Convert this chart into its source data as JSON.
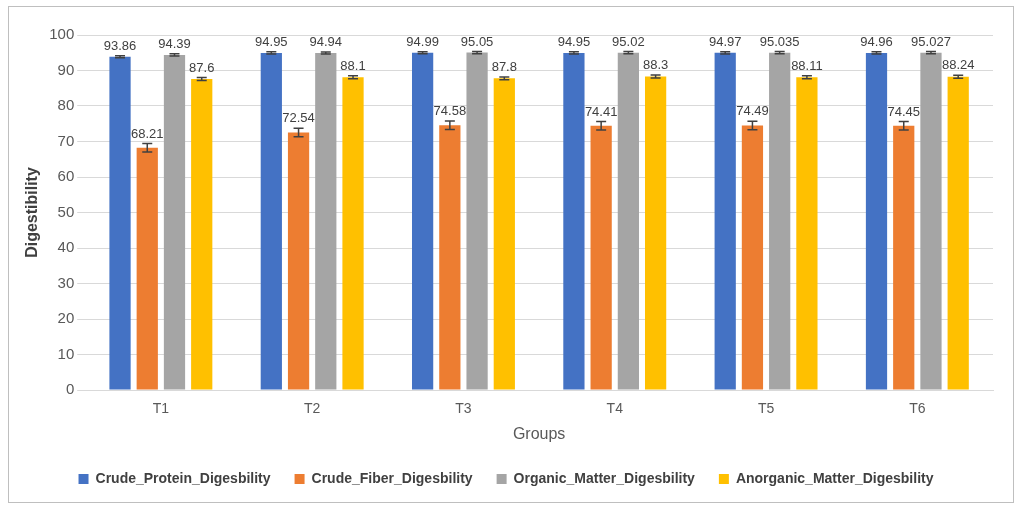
{
  "chart_data": {
    "type": "bar",
    "xlabel": "Groups",
    "ylabel": "Digestibility",
    "categories": [
      "T1",
      "T2",
      "T3",
      "T4",
      "T5",
      "T6"
    ],
    "series": [
      {
        "name": "Crude_Protein_Digesbility",
        "color": "#4472c4",
        "values": [
          93.86,
          94.95,
          94.99,
          94.95,
          94.97,
          94.96
        ],
        "errors": [
          0.3,
          0.3,
          0.3,
          0.3,
          0.3,
          0.3
        ]
      },
      {
        "name": "Crude_Fiber_Digesbility",
        "color": "#ed7d31",
        "values": [
          68.21,
          72.54,
          74.58,
          74.41,
          74.49,
          74.45
        ],
        "errors": [
          1.2,
          1.2,
          1.2,
          1.2,
          1.2,
          1.2
        ]
      },
      {
        "name": "Organic_Matter_Digesbility",
        "color": "#a5a5a5",
        "values": [
          94.39,
          94.94,
          95.05,
          95.02,
          95.035,
          95.027
        ],
        "errors": [
          0.3,
          0.3,
          0.3,
          0.3,
          0.3,
          0.3
        ]
      },
      {
        "name": "Anorganic_Matter_Digesbility",
        "color": "#ffc000",
        "values": [
          87.6,
          88.1,
          87.8,
          88.3,
          88.11,
          88.24
        ],
        "errors": [
          0.4,
          0.4,
          0.4,
          0.4,
          0.4,
          0.4
        ]
      }
    ],
    "ylim": [
      0,
      100
    ],
    "yticks": [
      0,
      10,
      20,
      30,
      40,
      50,
      60,
      70,
      80,
      90,
      100
    ],
    "grid": "y",
    "legend": "bottom",
    "data_labels": true
  }
}
